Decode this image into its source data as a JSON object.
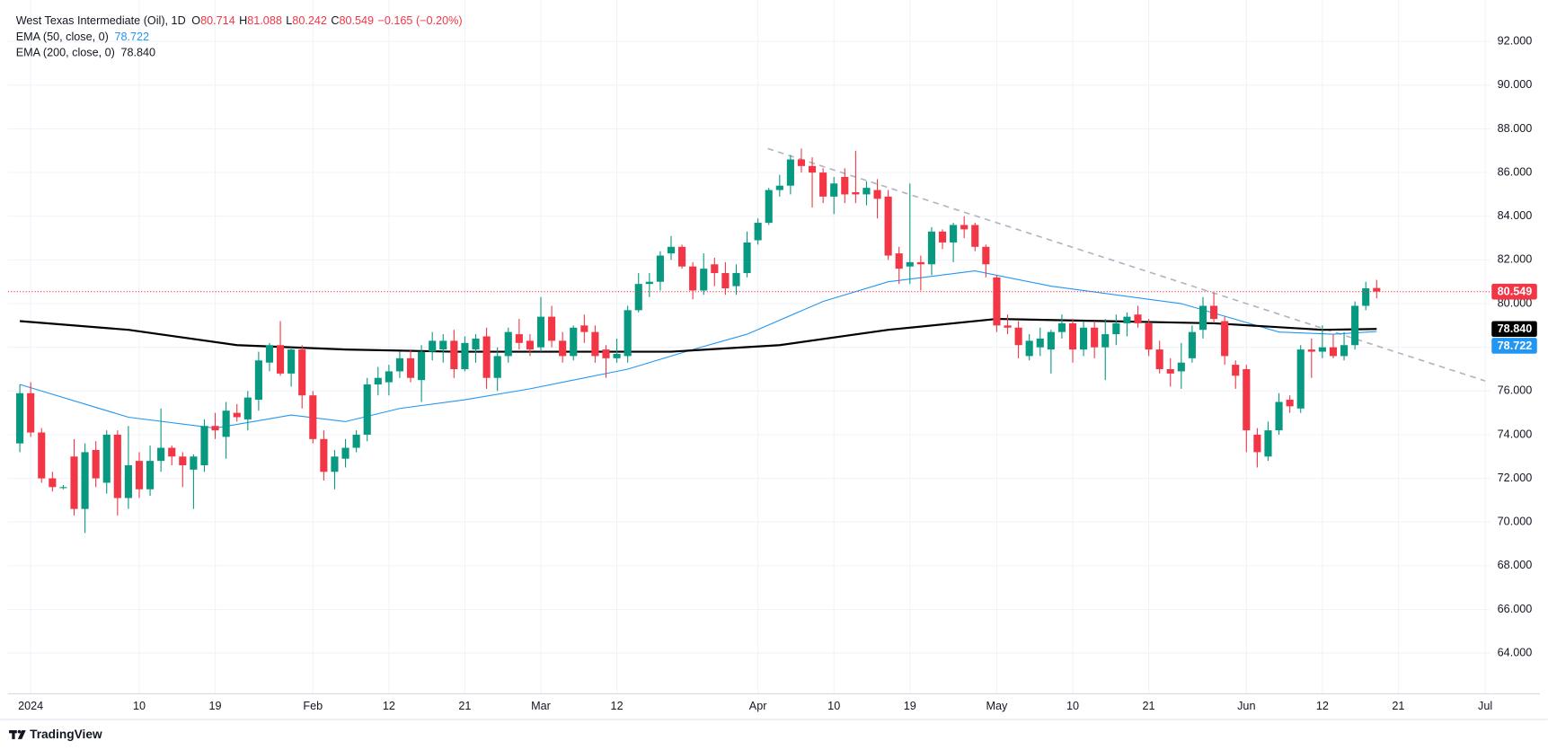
{
  "chart_data": {
    "type": "candlestick",
    "title": "West Texas Intermediate (Oil), 1D",
    "ohlc_keys": [
      "O",
      "H",
      "L",
      "C"
    ],
    "change": "−0.165 (−0.20%)",
    "up_color": "#089981",
    "down_color": "#f23645",
    "open": [
      73.6,
      75.9,
      74.1,
      72.0,
      71.6,
      73.0,
      70.6,
      73.3,
      71.8,
      74.0,
      71.1,
      72.8,
      71.5,
      72.8,
      73.4,
      73.0,
      72.4,
      72.6,
      74.4,
      73.9,
      75.0,
      74.7,
      75.6,
      77.3,
      78.1,
      76.8,
      77.9,
      75.8,
      73.8,
      72.3,
      72.9,
      73.4,
      74.0,
      76.3,
      76.4,
      76.9,
      77.5,
      76.5,
      77.8,
      77.9,
      78.3,
      77.0,
      77.9,
      78.5,
      76.6,
      77.6,
      78.6,
      78.3,
      78.0,
      79.4,
      78.3,
      77.6,
      79.0,
      78.7,
      77.9,
      77.5,
      77.6,
      79.7,
      80.9,
      81.0,
      82.3,
      82.6,
      81.7,
      80.6,
      81.8,
      81.4,
      80.8,
      81.4,
      82.9,
      83.7,
      85.2,
      85.4,
      86.6,
      86.3,
      86.0,
      84.9,
      85.8,
      85.1,
      85.0,
      85.2,
      84.9,
      82.3,
      81.7,
      81.9,
      81.8,
      83.3,
      82.8,
      83.6,
      83.6,
      82.6,
      81.2,
      79.0,
      78.9,
      77.6,
      78.0,
      77.9,
      78.7,
      79.1,
      77.9,
      78.9,
      78.0,
      78.6,
      79.1,
      79.5,
      79.1,
      77.9,
      77.0,
      76.9,
      77.5,
      78.8,
      79.9,
      79.2,
      77.2,
      77.0,
      74.0,
      73.0,
      74.2,
      75.6,
      75.2,
      77.9,
      77.8,
      78.0,
      77.6,
      78.1,
      79.9,
      80.714
    ],
    "high": [
      76.3,
      76.4,
      74.3,
      72.3,
      71.7,
      73.8,
      73.6,
      73.7,
      74.2,
      74.2,
      74.4,
      73.2,
      73.5,
      75.2,
      73.5,
      73.2,
      73.1,
      74.7,
      75.0,
      75.5,
      75.4,
      76.0,
      77.8,
      78.2,
      79.2,
      78.0,
      78.1,
      76.0,
      74.2,
      73.3,
      73.8,
      74.2,
      76.6,
      77.1,
      77.2,
      77.8,
      77.9,
      78.1,
      78.7,
      78.6,
      78.8,
      78.5,
      78.6,
      78.9,
      78.0,
      78.9,
      79.3,
      78.6,
      80.3,
      79.9,
      78.7,
      79.0,
      79.5,
      79.0,
      78.1,
      78.4,
      79.9,
      81.4,
      81.4,
      82.4,
      83.1,
      82.7,
      81.9,
      82.3,
      82.1,
      81.9,
      81.8,
      83.3,
      83.9,
      85.3,
      85.9,
      86.8,
      87.1,
      86.7,
      86.2,
      85.8,
      86.2,
      87.0,
      85.6,
      85.7,
      85.2,
      82.6,
      85.5,
      82.2,
      83.5,
      83.4,
      83.7,
      84.0,
      83.7,
      82.7,
      81.3,
      79.5,
      79.2,
      78.6,
      78.9,
      78.8,
      79.5,
      79.3,
      79.2,
      79.2,
      79.3,
      79.5,
      79.6,
      79.9,
      79.3,
      78.3,
      77.5,
      78.2,
      79.0,
      80.3,
      80.5,
      79.4,
      77.4,
      77.2,
      74.3,
      74.6,
      75.9,
      75.8,
      78.1,
      78.4,
      79.0,
      78.6,
      78.7,
      80.1,
      81.0,
      81.088
    ],
    "low": [
      73.2,
      73.9,
      71.8,
      71.4,
      71.5,
      70.3,
      69.5,
      71.6,
      71.3,
      70.3,
      70.6,
      71.1,
      71.2,
      72.3,
      72.6,
      71.6,
      70.6,
      72.3,
      73.8,
      72.9,
      74.6,
      74.2,
      75.1,
      76.9,
      76.7,
      76.2,
      75.2,
      73.6,
      71.9,
      71.5,
      72.5,
      73.2,
      73.7,
      75.8,
      75.8,
      76.6,
      76.4,
      75.5,
      77.4,
      77.3,
      76.6,
      76.9,
      77.3,
      76.1,
      76.0,
      77.3,
      77.9,
      77.6,
      77.8,
      78.0,
      77.3,
      77.4,
      78.2,
      77.3,
      76.6,
      77.3,
      77.3,
      79.6,
      80.3,
      80.6,
      82.0,
      81.6,
      80.2,
      80.4,
      80.8,
      80.4,
      80.4,
      81.2,
      82.7,
      83.6,
      84.9,
      85.0,
      86.0,
      84.4,
      84.6,
      84.1,
      84.6,
      84.6,
      84.5,
      83.9,
      82.0,
      80.9,
      80.9,
      80.6,
      81.3,
      82.5,
      81.9,
      83.0,
      82.4,
      81.2,
      78.7,
      78.6,
      77.5,
      77.4,
      77.6,
      76.8,
      78.4,
      77.3,
      77.6,
      77.5,
      76.5,
      78.1,
      78.5,
      78.9,
      77.6,
      76.8,
      76.2,
      76.1,
      77.3,
      78.4,
      79.1,
      77.2,
      76.1,
      73.2,
      72.5,
      72.8,
      74.0,
      75.0,
      75.0,
      76.6,
      77.5,
      77.5,
      77.4,
      77.9,
      79.7,
      80.242
    ],
    "close": [
      75.9,
      74.1,
      72.0,
      71.6,
      71.6,
      70.6,
      73.2,
      72.0,
      74.0,
      71.1,
      72.6,
      71.5,
      72.8,
      73.4,
      73.0,
      72.6,
      73.0,
      74.4,
      74.2,
      75.1,
      74.8,
      75.7,
      77.4,
      78.1,
      76.8,
      77.9,
      75.8,
      73.8,
      72.3,
      73.0,
      73.4,
      74.0,
      76.3,
      76.6,
      76.9,
      77.5,
      76.6,
      77.8,
      78.3,
      78.3,
      77.0,
      78.2,
      78.4,
      76.6,
      77.6,
      78.7,
      78.2,
      77.9,
      79.4,
      78.3,
      77.6,
      78.9,
      78.7,
      77.6,
      77.5,
      77.7,
      79.7,
      80.9,
      81.0,
      82.2,
      82.6,
      81.7,
      80.6,
      81.6,
      81.4,
      80.7,
      81.4,
      82.8,
      83.7,
      85.2,
      85.4,
      86.6,
      86.3,
      86.0,
      84.9,
      85.5,
      85.0,
      85.0,
      85.3,
      84.8,
      82.2,
      81.6,
      81.9,
      81.8,
      83.3,
      82.8,
      83.6,
      83.4,
      82.6,
      81.8,
      79.0,
      78.9,
      78.1,
      78.3,
      78.4,
      78.7,
      79.1,
      77.9,
      78.9,
      78.0,
      78.6,
      79.1,
      79.4,
      79.1,
      77.9,
      77.0,
      76.8,
      77.3,
      78.7,
      79.9,
      79.3,
      77.6,
      76.7,
      74.2,
      73.2,
      74.2,
      75.5,
      75.3,
      77.9,
      77.8,
      78.0,
      77.6,
      78.1,
      79.9,
      80.7,
      80.549
    ],
    "series": [
      {
        "name": "EMA (50, close, 0)",
        "color": "#2196f3",
        "x": [
          0,
          10,
          18,
          25,
          30,
          35,
          41,
          47,
          56,
          62,
          67,
          74,
          80,
          88,
          95,
          107,
          116,
          121,
          125
        ],
        "values": [
          76.3,
          74.8,
          74.3,
          74.9,
          74.6,
          75.2,
          75.6,
          76.1,
          77.0,
          77.9,
          78.6,
          80.1,
          81.0,
          81.5,
          80.8,
          80.0,
          78.7,
          78.6,
          78.722
        ]
      },
      {
        "name": "EMA (200, close, 0)",
        "color": "#000000",
        "x": [
          0,
          10,
          20,
          30,
          40,
          50,
          60,
          70,
          80,
          90,
          100,
          110,
          120,
          125
        ],
        "values": [
          79.2,
          78.8,
          78.1,
          77.9,
          77.8,
          77.8,
          77.8,
          78.1,
          78.8,
          79.3,
          79.2,
          79.1,
          78.8,
          78.84
        ],
        "value_labels": [
          null,
          null,
          null,
          null,
          null,
          null,
          null,
          null,
          null,
          null,
          null,
          null,
          null,
          "78.840"
        ]
      }
    ],
    "trendline": {
      "color": "#b2b5be",
      "x": [
        68.9,
        135
      ],
      "values": [
        87.1,
        76.46
      ]
    },
    "xlim": [
      -1.09,
      135.5
    ],
    "ylim": [
      62.14,
      93.9
    ],
    "xticks": [
      {
        "value": 1,
        "label": "2024"
      },
      {
        "value": 11,
        "label": "10"
      },
      {
        "value": 18,
        "label": "19"
      },
      {
        "value": 27,
        "label": "Feb"
      },
      {
        "value": 34,
        "label": "12"
      },
      {
        "value": 41,
        "label": "21"
      },
      {
        "value": 48,
        "label": "Mar"
      },
      {
        "value": 55,
        "label": "12"
      },
      {
        "value": 68,
        "label": "Apr"
      },
      {
        "value": 75,
        "label": "10"
      },
      {
        "value": 82,
        "label": "19"
      },
      {
        "value": 90,
        "label": "May"
      },
      {
        "value": 97,
        "label": "10"
      },
      {
        "value": 104,
        "label": "21"
      },
      {
        "value": 113,
        "label": "Jun"
      },
      {
        "value": 120,
        "label": "12"
      },
      {
        "value": 127,
        "label": "21"
      },
      {
        "value": 135,
        "label": "Jul"
      }
    ],
    "yticks": [
      {
        "value": 64,
        "label": "64.000"
      },
      {
        "value": 66,
        "label": "66.000"
      },
      {
        "value": 68,
        "label": "68.000"
      },
      {
        "value": 70,
        "label": "70.000"
      },
      {
        "value": 72,
        "label": "72.000"
      },
      {
        "value": 74,
        "label": "74.000"
      },
      {
        "value": 76,
        "label": "76.000"
      },
      {
        "value": 78,
        "label": "78.000"
      },
      {
        "value": 80,
        "label": "80.000"
      },
      {
        "value": 82,
        "label": "82.000"
      },
      {
        "value": 84,
        "label": "84.000"
      },
      {
        "value": 86,
        "label": "86.000"
      },
      {
        "value": 88,
        "label": "88.000"
      },
      {
        "value": 90,
        "label": "90.000"
      },
      {
        "value": 92,
        "label": "92.000"
      }
    ],
    "grid": true,
    "branding": "TradingView"
  }
}
